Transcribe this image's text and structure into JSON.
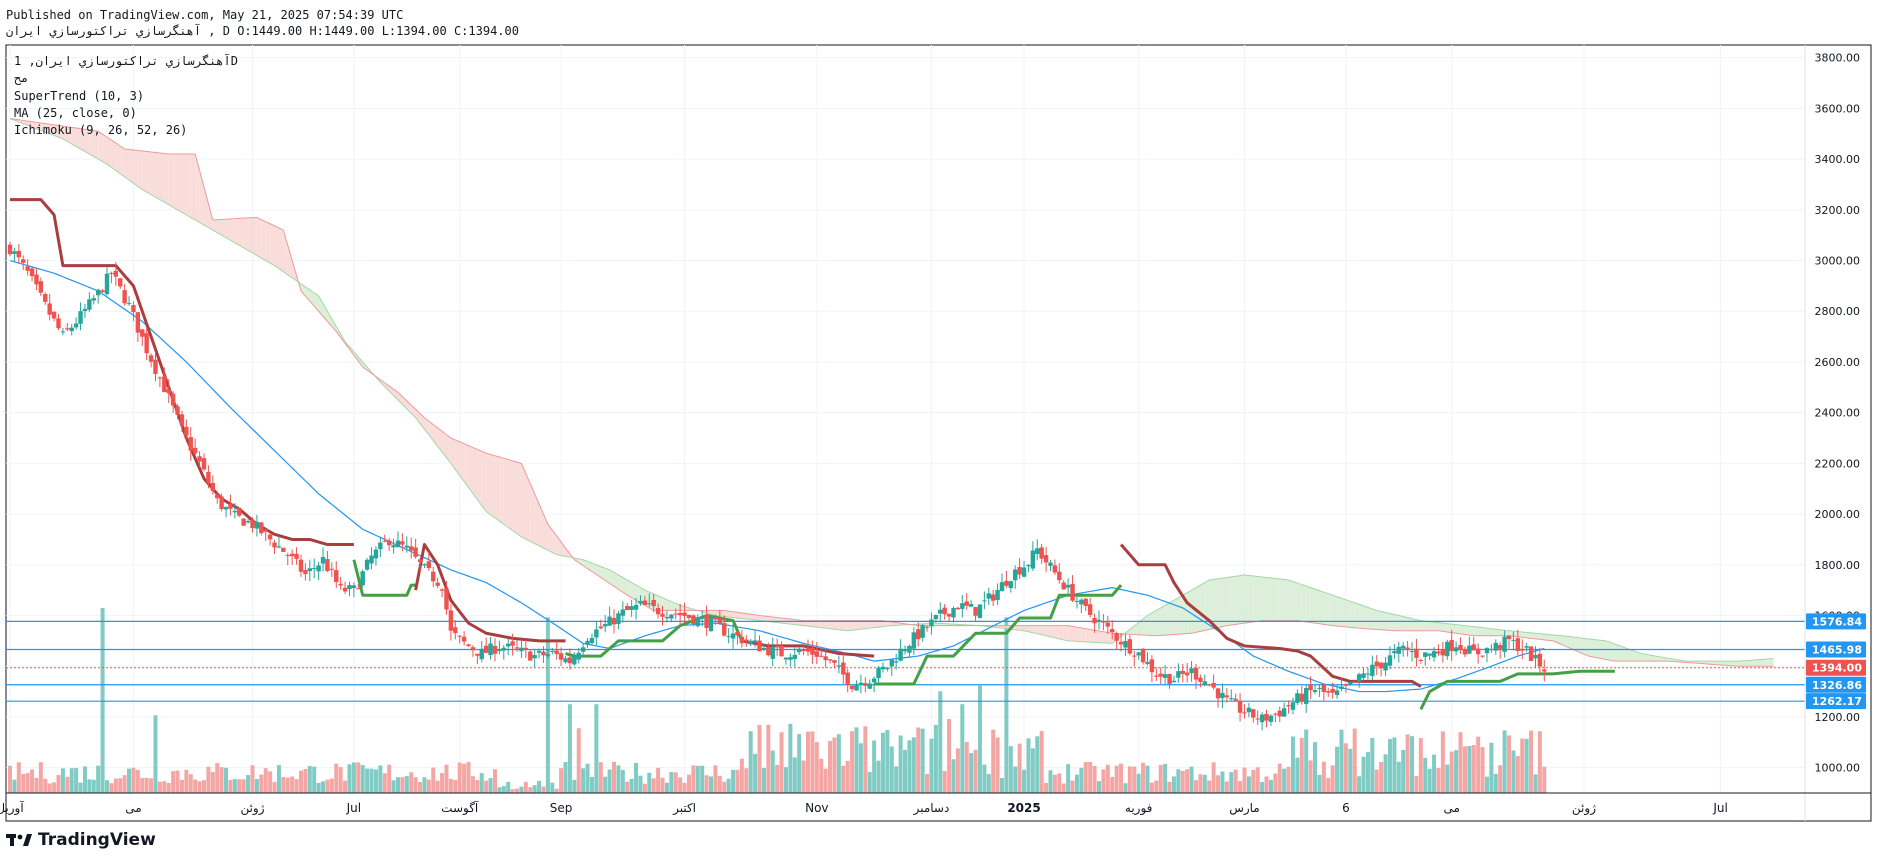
{
  "header": {
    "published": "Published on TradingView.com, May 21, 2025 07:54:39 UTC",
    "symbol_line": "آهنگرسازي تراكتورسازي ايران , D O:1449.00 H:1449.00 L:1394.00 C:1394.00"
  },
  "legend": {
    "title": "آهنگرسازي تراكتورسازي ايران, 1D",
    "subtitle": "مح",
    "supertrend": "SuperTrend (10, 3)",
    "ma": "MA (25, close, 0)",
    "ichimoku": "Ichimoku (9, 26, 52, 26)"
  },
  "brand": {
    "name": "TradingView"
  },
  "colors": {
    "up": "#26a69a",
    "down": "#ef5350",
    "supertrend_down": "#a83e3e",
    "supertrend_up": "#43a047",
    "ma": "#2196f3",
    "cloud_bear": "#f8d7d4",
    "cloud_bull": "#d6ecd2",
    "hline": "#2196f3",
    "price_line": "#ef5350"
  },
  "chart_data": {
    "type": "candlestick",
    "title": "آهنگرسازي تراكتورسازي ايران, 1D",
    "ylim": [
      900,
      3850
    ],
    "price_axis_ticks": [
      1000,
      1200,
      1400,
      1600,
      1800,
      2000,
      2200,
      2400,
      2600,
      2800,
      3000,
      3200,
      3400,
      3600,
      3800
    ],
    "price_axis_labels": [
      "1000.00",
      "1200.00",
      "1400.00",
      "1600.00",
      "1800.00",
      "2000.00",
      "2200.00",
      "2400.00",
      "2600.00",
      "2800.00",
      "3000.00",
      "3200.00",
      "3400.00",
      "3600.00",
      "3800.00"
    ],
    "time_axis": [
      {
        "label": "آوریل",
        "day": 0
      },
      {
        "label": "می",
        "day": 28
      },
      {
        "label": "ژوئن",
        "day": 55
      },
      {
        "label": "Jul",
        "day": 78
      },
      {
        "label": "آگوست",
        "day": 102
      },
      {
        "label": "Sep",
        "day": 125
      },
      {
        "label": "اکتبر",
        "day": 153
      },
      {
        "label": "Nov",
        "day": 183
      },
      {
        "label": "دسامبر",
        "day": 209
      },
      {
        "label": "2025",
        "day": 230,
        "bold": true
      },
      {
        "label": "فوریه",
        "day": 256
      },
      {
        "label": "مارس",
        "day": 280
      },
      {
        "label": "6",
        "day": 303
      },
      {
        "label": "می",
        "day": 327
      },
      {
        "label": "ژوئن",
        "day": 357
      },
      {
        "label": "Jul",
        "day": 388
      }
    ],
    "x_days_total": 406,
    "horizontal_levels": [
      {
        "value": 1576.84,
        "label": "1576.84"
      },
      {
        "value": 1465.98,
        "label": "1465.98"
      },
      {
        "value": 1326.86,
        "label": "1326.86"
      },
      {
        "value": 1262.17,
        "label": "1262.17"
      }
    ],
    "last_price": {
      "value": 1394.0,
      "label": "1394.00"
    },
    "close_anchors": [
      [
        0,
        3050
      ],
      [
        4,
        2950
      ],
      [
        8,
        2820
      ],
      [
        12,
        2700
      ],
      [
        16,
        2780
      ],
      [
        20,
        2870
      ],
      [
        23,
        2950
      ],
      [
        27,
        2820
      ],
      [
        31,
        2650
      ],
      [
        35,
        2500
      ],
      [
        39,
        2330
      ],
      [
        43,
        2200
      ],
      [
        47,
        2050
      ],
      [
        51,
        1990
      ],
      [
        55,
        1960
      ],
      [
        59,
        1900
      ],
      [
        63,
        1840
      ],
      [
        67,
        1760
      ],
      [
        71,
        1820
      ],
      [
        75,
        1700
      ],
      [
        78,
        1700
      ],
      [
        82,
        1830
      ],
      [
        86,
        1900
      ],
      [
        90,
        1860
      ],
      [
        94,
        1780
      ],
      [
        98,
        1720
      ],
      [
        100,
        1530
      ],
      [
        103,
        1490
      ],
      [
        107,
        1450
      ],
      [
        111,
        1480
      ],
      [
        115,
        1460
      ],
      [
        119,
        1440
      ],
      [
        123,
        1450
      ],
      [
        127,
        1420
      ],
      [
        131,
        1520
      ],
      [
        135,
        1560
      ],
      [
        139,
        1610
      ],
      [
        143,
        1640
      ],
      [
        147,
        1620
      ],
      [
        151,
        1610
      ],
      [
        155,
        1590
      ],
      [
        159,
        1570
      ],
      [
        163,
        1530
      ],
      [
        167,
        1500
      ],
      [
        171,
        1470
      ],
      [
        175,
        1450
      ],
      [
        179,
        1460
      ],
      [
        183,
        1450
      ],
      [
        187,
        1400
      ],
      [
        191,
        1330
      ],
      [
        195,
        1350
      ],
      [
        199,
        1400
      ],
      [
        203,
        1480
      ],
      [
        207,
        1540
      ],
      [
        211,
        1600
      ],
      [
        215,
        1640
      ],
      [
        219,
        1620
      ],
      [
        223,
        1680
      ],
      [
        227,
        1760
      ],
      [
        231,
        1810
      ],
      [
        233,
        1860
      ],
      [
        236,
        1790
      ],
      [
        240,
        1700
      ],
      [
        244,
        1620
      ],
      [
        248,
        1560
      ],
      [
        252,
        1500
      ],
      [
        256,
        1450
      ],
      [
        260,
        1370
      ],
      [
        264,
        1350
      ],
      [
        268,
        1380
      ],
      [
        272,
        1330
      ],
      [
        276,
        1260
      ],
      [
        280,
        1220
      ],
      [
        284,
        1190
      ],
      [
        288,
        1220
      ],
      [
        292,
        1270
      ],
      [
        296,
        1310
      ],
      [
        300,
        1280
      ],
      [
        304,
        1320
      ],
      [
        308,
        1380
      ],
      [
        312,
        1420
      ],
      [
        316,
        1470
      ],
      [
        320,
        1440
      ],
      [
        324,
        1460
      ],
      [
        328,
        1490
      ],
      [
        332,
        1450
      ],
      [
        336,
        1470
      ],
      [
        340,
        1500
      ],
      [
        344,
        1460
      ],
      [
        346,
        1420
      ],
      [
        348,
        1394
      ]
    ],
    "supertrend": {
      "segments": [
        {
          "trend": "down",
          "points": [
            [
              0,
              3240
            ],
            [
              7,
              3240
            ],
            [
              10,
              3180
            ],
            [
              12,
              2980
            ],
            [
              24,
              2980
            ],
            [
              28,
              2900
            ],
            [
              32,
              2700
            ],
            [
              36,
              2500
            ],
            [
              40,
              2300
            ],
            [
              44,
              2140
            ],
            [
              48,
              2060
            ],
            [
              52,
              2020
            ],
            [
              56,
              1960
            ],
            [
              60,
              1920
            ],
            [
              64,
              1900
            ],
            [
              68,
              1900
            ],
            [
              72,
              1880
            ],
            [
              76,
              1880
            ],
            [
              78,
              1880
            ]
          ]
        },
        {
          "trend": "up",
          "points": [
            [
              78,
              1820
            ],
            [
              80,
              1680
            ],
            [
              90,
              1680
            ],
            [
              91,
              1720
            ],
            [
              92,
              1720
            ]
          ]
        },
        {
          "trend": "down",
          "points": [
            [
              92,
              1700
            ],
            [
              94,
              1880
            ],
            [
              97,
              1800
            ],
            [
              100,
              1660
            ],
            [
              104,
              1570
            ],
            [
              108,
              1530
            ],
            [
              114,
              1510
            ],
            [
              120,
              1500
            ],
            [
              126,
              1500
            ]
          ]
        },
        {
          "trend": "up",
          "points": [
            [
              126,
              1450
            ],
            [
              128,
              1440
            ],
            [
              134,
              1440
            ],
            [
              138,
              1500
            ],
            [
              148,
              1500
            ],
            [
              152,
              1560
            ],
            [
              158,
              1600
            ],
            [
              164,
              1580
            ],
            [
              166,
              1500
            ]
          ]
        },
        {
          "trend": "down",
          "points": [
            [
              166,
              1500
            ],
            [
              172,
              1480
            ],
            [
              180,
              1480
            ],
            [
              188,
              1450
            ],
            [
              196,
              1440
            ]
          ]
        },
        {
          "trend": "up",
          "points": [
            [
              196,
              1330
            ],
            [
              205,
              1330
            ],
            [
              208,
              1440
            ],
            [
              214,
              1440
            ],
            [
              219,
              1530
            ],
            [
              226,
              1530
            ],
            [
              229,
              1590
            ],
            [
              236,
              1590
            ],
            [
              238,
              1680
            ],
            [
              250,
              1680
            ],
            [
              252,
              1720
            ]
          ]
        },
        {
          "trend": "down",
          "points": [
            [
              252,
              1880
            ],
            [
              256,
              1800
            ],
            [
              262,
              1800
            ],
            [
              264,
              1730
            ],
            [
              267,
              1650
            ],
            [
              272,
              1580
            ],
            [
              276,
              1510
            ],
            [
              280,
              1480
            ],
            [
              288,
              1470
            ],
            [
              292,
              1460
            ],
            [
              295,
              1440
            ],
            [
              300,
              1360
            ],
            [
              304,
              1340
            ],
            [
              318,
              1340
            ],
            [
              320,
              1320
            ]
          ]
        },
        {
          "trend": "up",
          "points": [
            [
              320,
              1230
            ],
            [
              322,
              1300
            ],
            [
              326,
              1340
            ],
            [
              338,
              1340
            ],
            [
              342,
              1370
            ],
            [
              350,
              1370
            ],
            [
              356,
              1380
            ],
            [
              364,
              1380
            ]
          ]
        }
      ]
    },
    "ma_anchors": [
      [
        0,
        3000
      ],
      [
        10,
        2950
      ],
      [
        20,
        2880
      ],
      [
        30,
        2760
      ],
      [
        40,
        2600
      ],
      [
        50,
        2420
      ],
      [
        60,
        2250
      ],
      [
        70,
        2080
      ],
      [
        80,
        1940
      ],
      [
        90,
        1860
      ],
      [
        100,
        1780
      ],
      [
        108,
        1730
      ],
      [
        116,
        1650
      ],
      [
        124,
        1560
      ],
      [
        130,
        1490
      ],
      [
        136,
        1470
      ],
      [
        144,
        1520
      ],
      [
        152,
        1560
      ],
      [
        160,
        1570
      ],
      [
        170,
        1540
      ],
      [
        180,
        1490
      ],
      [
        190,
        1450
      ],
      [
        196,
        1420
      ],
      [
        206,
        1440
      ],
      [
        214,
        1480
      ],
      [
        222,
        1550
      ],
      [
        230,
        1620
      ],
      [
        240,
        1680
      ],
      [
        250,
        1710
      ],
      [
        258,
        1680
      ],
      [
        266,
        1630
      ],
      [
        274,
        1540
      ],
      [
        282,
        1440
      ],
      [
        290,
        1380
      ],
      [
        298,
        1330
      ],
      [
        306,
        1300
      ],
      [
        312,
        1300
      ],
      [
        320,
        1310
      ],
      [
        328,
        1350
      ],
      [
        336,
        1400
      ],
      [
        342,
        1440
      ],
      [
        348,
        1470
      ]
    ],
    "cloud_a": [
      [
        0,
        3560
      ],
      [
        12,
        3480
      ],
      [
        22,
        3380
      ],
      [
        30,
        3280
      ],
      [
        40,
        3180
      ],
      [
        50,
        3080
      ],
      [
        60,
        2980
      ],
      [
        70,
        2860
      ],
      [
        76,
        2680
      ],
      [
        84,
        2520
      ],
      [
        92,
        2380
      ],
      [
        100,
        2200
      ],
      [
        108,
        2010
      ],
      [
        116,
        1910
      ],
      [
        124,
        1840
      ],
      [
        130,
        1820
      ],
      [
        136,
        1780
      ],
      [
        144,
        1700
      ],
      [
        152,
        1640
      ],
      [
        160,
        1600
      ],
      [
        170,
        1580
      ],
      [
        180,
        1560
      ],
      [
        190,
        1540
      ],
      [
        200,
        1560
      ],
      [
        210,
        1570
      ],
      [
        220,
        1560
      ],
      [
        230,
        1540
      ],
      [
        240,
        1500
      ],
      [
        250,
        1490
      ],
      [
        258,
        1600
      ],
      [
        266,
        1680
      ],
      [
        272,
        1740
      ],
      [
        280,
        1760
      ],
      [
        290,
        1740
      ],
      [
        300,
        1680
      ],
      [
        310,
        1620
      ],
      [
        320,
        1580
      ],
      [
        330,
        1560
      ],
      [
        340,
        1540
      ],
      [
        352,
        1520
      ],
      [
        362,
        1500
      ],
      [
        370,
        1450
      ],
      [
        380,
        1420
      ],
      [
        392,
        1420
      ],
      [
        400,
        1430
      ]
    ],
    "cloud_b": [
      [
        0,
        3560
      ],
      [
        20,
        3510
      ],
      [
        26,
        3440
      ],
      [
        36,
        3420
      ],
      [
        42,
        3420
      ],
      [
        46,
        3160
      ],
      [
        56,
        3170
      ],
      [
        62,
        3120
      ],
      [
        66,
        2880
      ],
      [
        74,
        2720
      ],
      [
        80,
        2580
      ],
      [
        88,
        2480
      ],
      [
        94,
        2380
      ],
      [
        100,
        2300
      ],
      [
        108,
        2240
      ],
      [
        116,
        2200
      ],
      [
        122,
        1960
      ],
      [
        128,
        1820
      ],
      [
        134,
        1750
      ],
      [
        140,
        1680
      ],
      [
        146,
        1620
      ],
      [
        154,
        1620
      ],
      [
        162,
        1620
      ],
      [
        170,
        1600
      ],
      [
        180,
        1580
      ],
      [
        190,
        1580
      ],
      [
        198,
        1580
      ],
      [
        206,
        1560
      ],
      [
        214,
        1560
      ],
      [
        222,
        1560
      ],
      [
        230,
        1560
      ],
      [
        240,
        1560
      ],
      [
        250,
        1530
      ],
      [
        260,
        1520
      ],
      [
        268,
        1530
      ],
      [
        276,
        1560
      ],
      [
        284,
        1580
      ],
      [
        292,
        1580
      ],
      [
        300,
        1560
      ],
      [
        306,
        1550
      ],
      [
        314,
        1540
      ],
      [
        324,
        1540
      ],
      [
        332,
        1520
      ],
      [
        340,
        1520
      ],
      [
        350,
        1500
      ],
      [
        358,
        1440
      ],
      [
        364,
        1420
      ],
      [
        376,
        1420
      ],
      [
        392,
        1400
      ],
      [
        400,
        1400
      ]
    ],
    "volume_spikes": [
      {
        "day": 21,
        "value": 1.0,
        "up": true
      },
      {
        "day": 33,
        "value": 0.42,
        "up": true
      },
      {
        "day": 122,
        "value": 0.95,
        "up": true
      },
      {
        "day": 127,
        "value": 0.48,
        "up": true
      },
      {
        "day": 133,
        "value": 0.48,
        "up": true
      },
      {
        "day": 211,
        "value": 0.55,
        "up": true
      },
      {
        "day": 216,
        "value": 0.48,
        "up": true
      },
      {
        "day": 220,
        "value": 0.58,
        "up": true
      },
      {
        "day": 224,
        "value": 0.48,
        "up": true
      },
      {
        "day": 226,
        "value": 0.95,
        "up": true
      },
      {
        "day": 129,
        "value": 0.35,
        "up": false
      },
      {
        "day": 213,
        "value": 0.4,
        "up": false
      },
      {
        "day": 224,
        "value": 0.3,
        "up": false
      }
    ]
  }
}
